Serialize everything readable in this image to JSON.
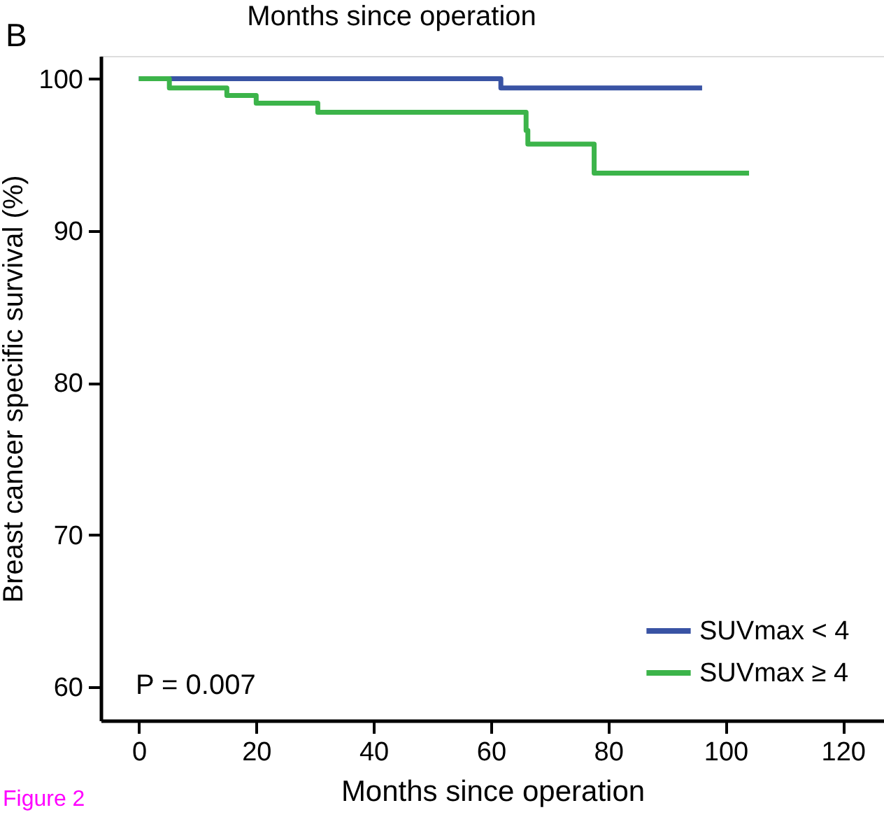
{
  "chart_data": {
    "type": "step",
    "title": "B",
    "xlabel": "Months since operation",
    "ylabel": "Breast cancer specific survival (%)",
    "series": [
      {
        "name": "SUVmax < 4",
        "color": "#3953a4",
        "x": [
          0,
          61.7,
          96
        ],
        "values": [
          100,
          99.4,
          99.4
        ]
      },
      {
        "name": "SUVmax ≥ 4",
        "color": "#3cb44a",
        "x": [
          0,
          5.2,
          15,
          20,
          30.5,
          66,
          66.3,
          77.6,
          104
        ],
        "values": [
          100,
          99.4,
          98.9,
          98.4,
          97.8,
          96.6,
          95.7,
          93.8,
          93.8
        ]
      }
    ],
    "xlim": [
      -6.5,
      127
    ],
    "xticks": [
      0,
      20,
      40,
      60,
      80,
      100,
      120
    ],
    "ylim": [
      57.8,
      101.5
    ],
    "yticks": [
      60,
      70,
      80,
      90,
      100
    ],
    "legend": "bottom right",
    "grid": false,
    "annotations": [
      "P = 0.007",
      "Months since operation",
      "Figure 2"
    ]
  }
}
